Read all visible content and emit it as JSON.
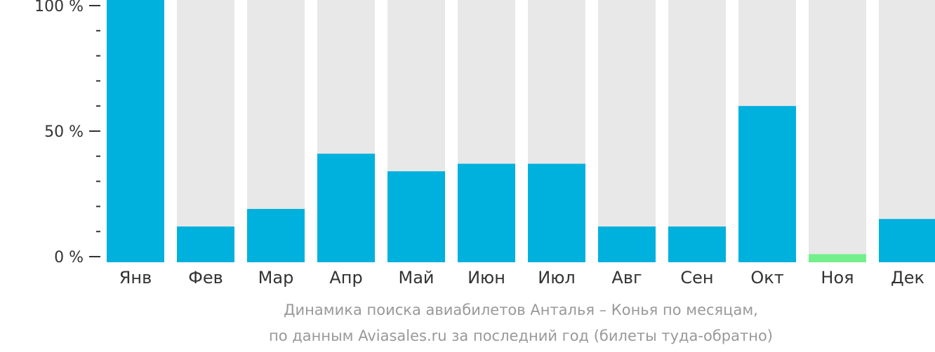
{
  "caption": {
    "line1": "Динамика поиска авиабилетов Анталья – Конья по месяцам,",
    "line2": "по данным Aviasales.ru за последний год (билеты туда-обратно)"
  },
  "colors": {
    "bar": "#00b0dd",
    "bar_min": "#73f08c",
    "track": "#e8e8e8",
    "axis": "#333333",
    "caption": "#999999"
  },
  "chart_data": {
    "type": "bar",
    "categories": [
      "Янв",
      "Фев",
      "Мар",
      "Апр",
      "Май",
      "Июн",
      "Июл",
      "Авг",
      "Сен",
      "Окт",
      "Ноя",
      "Дек"
    ],
    "series": [
      {
        "values": [
          100,
          12,
          19,
          41,
          34,
          37,
          37,
          12,
          12,
          60,
          1,
          15
        ]
      }
    ],
    "highlight_min_category": "Ноя",
    "yticks": [
      {
        "value": 0,
        "label": "0 %"
      },
      {
        "value": 50,
        "label": "50 %"
      },
      {
        "value": 100,
        "label": "100 %"
      }
    ],
    "ylim": [
      0,
      100
    ],
    "minor_tick_step": 10,
    "grid": false,
    "legend": "none"
  }
}
